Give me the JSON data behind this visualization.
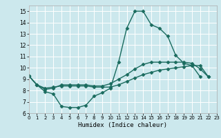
{
  "xlabel": "Humidex (Indice chaleur)",
  "bg_color": "#cce8ed",
  "grid_color": "#ffffff",
  "line_color": "#1a6b5e",
  "marker": "D",
  "markersize": 2.5,
  "linewidth": 1.0,
  "xlim": [
    0,
    23
  ],
  "ylim": [
    6,
    15.5
  ],
  "xticks": [
    0,
    1,
    2,
    3,
    4,
    5,
    6,
    7,
    8,
    9,
    10,
    11,
    12,
    13,
    14,
    15,
    16,
    17,
    18,
    19,
    20,
    21,
    22,
    23
  ],
  "yticks": [
    6,
    7,
    8,
    9,
    10,
    11,
    12,
    13,
    14,
    15
  ],
  "lines": [
    {
      "x": [
        0,
        1,
        2,
        3,
        4,
        5,
        6,
        7,
        8,
        9,
        10,
        11,
        12,
        13,
        14,
        15,
        16,
        17,
        18,
        19,
        20,
        21
      ],
      "y": [
        9.3,
        8.5,
        7.9,
        7.7,
        6.6,
        6.5,
        6.5,
        6.7,
        7.5,
        7.8,
        8.2,
        10.5,
        13.5,
        15.0,
        15.0,
        13.8,
        13.5,
        12.8,
        11.1,
        10.4,
        10.2,
        9.2
      ]
    },
    {
      "x": [
        0,
        1,
        2,
        3,
        4,
        5,
        6,
        7,
        8,
        9,
        10,
        11,
        12,
        13,
        14,
        15,
        16,
        17,
        18,
        19,
        20,
        21,
        22
      ],
      "y": [
        9.3,
        8.5,
        8.2,
        8.3,
        8.4,
        8.4,
        8.4,
        8.4,
        8.3,
        8.3,
        8.3,
        8.5,
        8.8,
        9.1,
        9.4,
        9.6,
        9.8,
        9.9,
        10.0,
        10.1,
        10.2,
        10.2,
        9.2
      ]
    },
    {
      "x": [
        0,
        1,
        2,
        3,
        4,
        5,
        6,
        7,
        8,
        9,
        10,
        11,
        12,
        13,
        14,
        15,
        16,
        17,
        18,
        19,
        20,
        21,
        22
      ],
      "y": [
        9.3,
        8.5,
        8.1,
        8.2,
        8.5,
        8.5,
        8.5,
        8.5,
        8.4,
        8.4,
        8.6,
        9.0,
        9.4,
        9.9,
        10.3,
        10.5,
        10.5,
        10.5,
        10.5,
        10.5,
        10.4,
        9.9,
        9.2
      ]
    }
  ]
}
